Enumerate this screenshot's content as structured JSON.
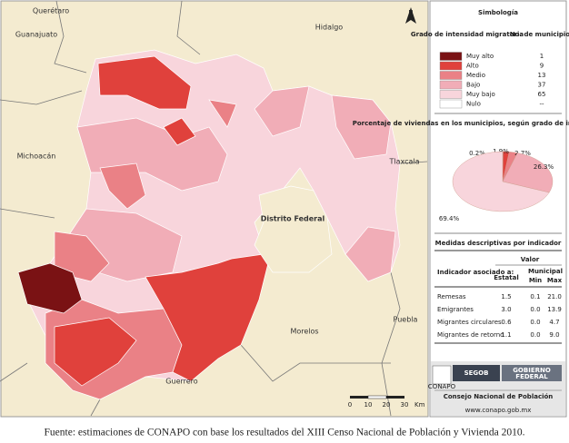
{
  "map": {
    "states": [
      "Querétaro",
      "Guanajuato",
      "Hidalgo",
      "Michoacán",
      "Tlaxcala",
      "Distrito Federal",
      "Puebla",
      "Morelos",
      "Guerrero"
    ],
    "north": "N",
    "scale": {
      "ticks": [
        "0",
        "10",
        "20",
        "30"
      ],
      "unit": "Km"
    }
  },
  "legend": {
    "title": "Simbología",
    "header": [
      "Grado de intensidad migratoria",
      "No. de municipios"
    ],
    "rows": [
      {
        "label": "Muy alto",
        "count": "1",
        "color": "#7a1214"
      },
      {
        "label": "Alto",
        "count": "9",
        "color": "#e0413c"
      },
      {
        "label": "Medio",
        "count": "13",
        "color": "#ea8186"
      },
      {
        "label": "Bajo",
        "count": "37",
        "color": "#f1adb7"
      },
      {
        "label": "Muy bajo",
        "count": "65",
        "color": "#f8d5dc"
      },
      {
        "label": "Nulo",
        "count": "--",
        "color": "#ffffff"
      }
    ]
  },
  "chart_data": {
    "type": "pie",
    "title": "Porcentaje de viviendas en los municipios, según grado de intensidad migratoria",
    "values": [
      0.2,
      1.9,
      2.7,
      26.3,
      69.4
    ],
    "value_labels": [
      "0.2%",
      "1.9%",
      "2.7%",
      "26.3%",
      "69.4%"
    ],
    "colors": [
      "#7a1214",
      "#e0413c",
      "#ea8186",
      "#f1adb7",
      "#f8d5dc"
    ]
  },
  "table": {
    "title": "Medidas descriptivas por indicador",
    "group": "Valor",
    "header": [
      "Indicador asociado a:",
      "Estatal",
      "Municipal",
      "Min",
      "Max"
    ],
    "rows": [
      [
        "Remesas",
        "1.5",
        "0.1",
        "21.0"
      ],
      [
        "Emigrantes",
        "3.0",
        "0.0",
        "13.9"
      ],
      [
        "Migrantes circulares",
        "0.6",
        "0.0",
        "4.7"
      ],
      [
        "Migrantes de retorno",
        "1.1",
        "0.0",
        "9.0"
      ]
    ]
  },
  "logos": {
    "segob": "SEGOB",
    "gobierno": "GOBIERNO",
    "federal": "FEDERAL",
    "conapo": "CONAPO",
    "org": "Consejo Nacional de Población",
    "url": "www.conapo.gob.mx"
  },
  "footer": "Fuente: estimaciones de CONAPO con base los resultados del XIII Censo Nacional de Población y Vivienda 2010."
}
